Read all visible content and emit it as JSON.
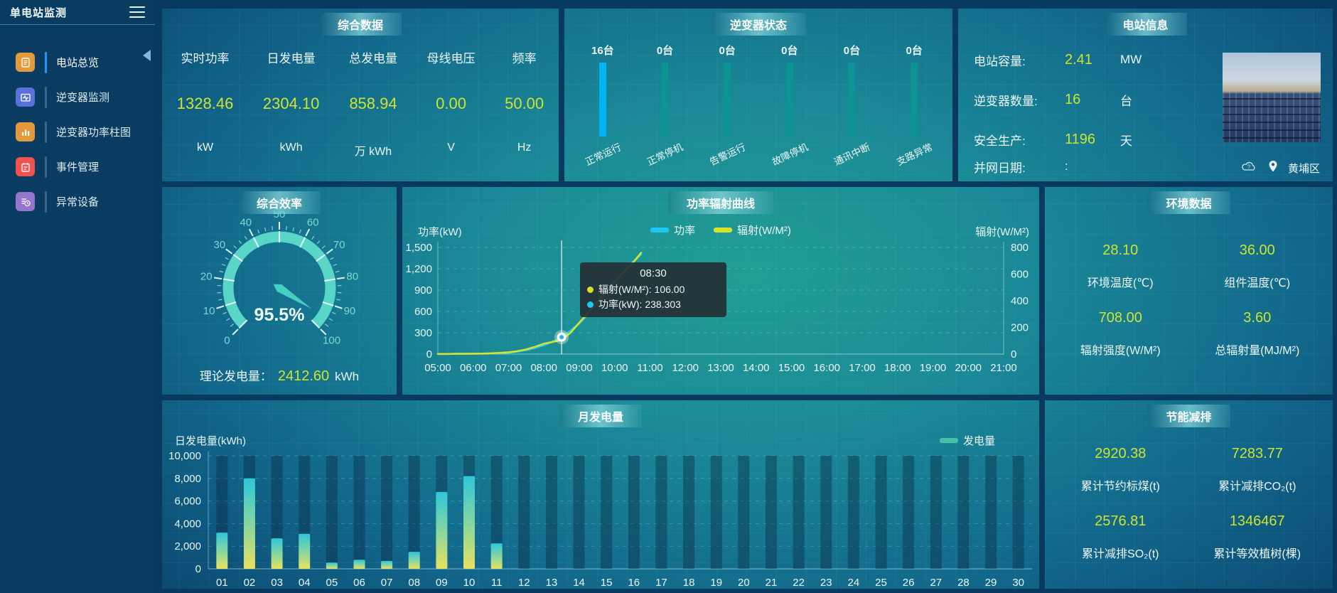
{
  "app": {
    "title": "单电站监测"
  },
  "sidebar": {
    "items": [
      {
        "label": "电站总览",
        "active": true
      },
      {
        "label": "逆变器监测",
        "active": false
      },
      {
        "label": "逆变器功率柱图",
        "active": false
      },
      {
        "label": "事件管理",
        "active": false
      },
      {
        "label": "异常设备",
        "active": false
      }
    ]
  },
  "summary": {
    "title": "综合数据",
    "metrics": [
      {
        "label": "实时功率",
        "value": "1328.46",
        "unit": "kW"
      },
      {
        "label": "日发电量",
        "value": "2304.10",
        "unit": "kWh"
      },
      {
        "label": "总发电量",
        "value": "858.94",
        "unit": "万 kWh"
      },
      {
        "label": "母线电压",
        "value": "0.00",
        "unit": "V"
      },
      {
        "label": "频率",
        "value": "50.00",
        "unit": "Hz"
      }
    ]
  },
  "inverter_status": {
    "title": "逆变器状态",
    "highlight_color": "#00b4f5",
    "normal_color": "#0e9494",
    "statuses": [
      {
        "count": "16台",
        "label": "正常运行"
      },
      {
        "count": "0台",
        "label": "正常停机"
      },
      {
        "count": "0台",
        "label": "告警运行"
      },
      {
        "count": "0台",
        "label": "故障停机"
      },
      {
        "count": "0台",
        "label": "通讯中断"
      },
      {
        "count": "0台",
        "label": "支路异常"
      }
    ]
  },
  "station_info": {
    "title": "电站信息",
    "rows": [
      {
        "label": "电站容量:",
        "value": "2.41",
        "unit": "MW"
      },
      {
        "label": "逆变器数量:",
        "value": "16",
        "unit": "台"
      },
      {
        "label": "安全生产:",
        "value": "1196",
        "unit": "天"
      },
      {
        "label": "并网日期:",
        "value": ":",
        "unit": ""
      }
    ],
    "region": "黄埔区"
  },
  "efficiency": {
    "title": "综合效率",
    "gauge_label": "95.5%",
    "theory_label": "理论发电量：",
    "theory_value": "2412.60",
    "theory_unit": "kWh"
  },
  "environment": {
    "title": "环境数据",
    "metrics": [
      {
        "value": "28.10",
        "label": "环境温度(℃)"
      },
      {
        "value": "36.00",
        "label": "组件温度(℃)"
      },
      {
        "value": "708.00",
        "label": "辐射强度(W/M²)"
      },
      {
        "value": "3.60",
        "label": "总辐射量(MJ/M²)"
      }
    ]
  },
  "energy_saving": {
    "title": "节能减排",
    "metrics": [
      {
        "value": "2920.38",
        "label": "累计节约标煤(t)"
      },
      {
        "value": "7283.77",
        "label": "累计减排CO₂(t)"
      },
      {
        "value": "2576.81",
        "label": "累计减排SO₂(t)"
      },
      {
        "value": "1346467",
        "label": "累计等效植树(棵)"
      }
    ]
  },
  "chart_data": [
    {
      "type": "line",
      "title": "功率辐射曲线",
      "x_range": [
        5,
        21
      ],
      "x_tick_labels": [
        "05:00",
        "06:00",
        "07:00",
        "08:00",
        "09:00",
        "10:00",
        "11:00",
        "12:00",
        "13:00",
        "14:00",
        "15:00",
        "16:00",
        "17:00",
        "18:00",
        "19:00",
        "20:00",
        "21:00"
      ],
      "x_hours": [
        5,
        5.25,
        5.5,
        5.75,
        6,
        6.25,
        6.5,
        6.75,
        7,
        7.25,
        7.5,
        7.75,
        8,
        8.25,
        8.5,
        8.75,
        9,
        9.25,
        9.5,
        9.75,
        10,
        10.25,
        10.5,
        10.75
      ],
      "series": [
        {
          "name": "功率",
          "color": "#1ec8f5",
          "axis": "left",
          "values": [
            2,
            2,
            3,
            3,
            5,
            6,
            8,
            12,
            20,
            35,
            55,
            85,
            125,
            175,
            238.3,
            330,
            430,
            560,
            700,
            850,
            1000,
            1150,
            1290,
            1400
          ]
        },
        {
          "name": "辐射(W/M²)",
          "color": "#d8e22a",
          "axis": "right",
          "values": [
            1,
            1,
            2,
            2,
            3,
            4,
            6,
            9,
            14,
            22,
            35,
            55,
            78,
            92,
            106,
            160,
            235,
            310,
            390,
            470,
            545,
            615,
            680,
            760
          ]
        }
      ],
      "left_axis": {
        "label": "功率(kW)",
        "max": 1500,
        "tick_labels": [
          "0",
          "300",
          "600",
          "900",
          "1,200",
          "1,500"
        ]
      },
      "right_axis": {
        "label": "辐射(W/M²)",
        "max": 800,
        "tick_labels": [
          "0",
          "200",
          "400",
          "600",
          "800"
        ]
      },
      "hover": {
        "x_hour": 8.5,
        "time": "08:30",
        "items": [
          {
            "text": "辐射(W/M²): 106.00",
            "color": "#d8e22a"
          },
          {
            "text": "功率(kW): 238.303",
            "color": "#1ec8f5"
          }
        ]
      }
    },
    {
      "type": "bar",
      "title": "月发电量",
      "ylabel": "日发电量(kWh)",
      "legend_label": "发电量",
      "categories": [
        "01",
        "02",
        "03",
        "04",
        "05",
        "06",
        "07",
        "08",
        "09",
        "10",
        "11",
        "12",
        "13",
        "14",
        "15",
        "16",
        "17",
        "18",
        "19",
        "20",
        "21",
        "22",
        "23",
        "24",
        "25",
        "26",
        "27",
        "28",
        "29",
        "30"
      ],
      "values": [
        3200,
        8000,
        2700,
        3100,
        550,
        800,
        700,
        1500,
        6800,
        8200,
        2250,
        0,
        0,
        0,
        0,
        0,
        0,
        0,
        0,
        0,
        0,
        0,
        0,
        0,
        0,
        0,
        0,
        0,
        0,
        0
      ],
      "ylim": [
        0,
        10000
      ],
      "ytick_labels": [
        "0",
        "2,000",
        "4,000",
        "6,000",
        "8,000",
        "10,000"
      ],
      "bar_gradient": [
        "#2ec6d9",
        "#8ed79b",
        "#e8e25f"
      ]
    },
    {
      "type": "gauge",
      "title": "综合效率",
      "min": 0,
      "max": 100,
      "value": 95.5,
      "label": "95.5%",
      "color": "#59d6c8"
    }
  ]
}
